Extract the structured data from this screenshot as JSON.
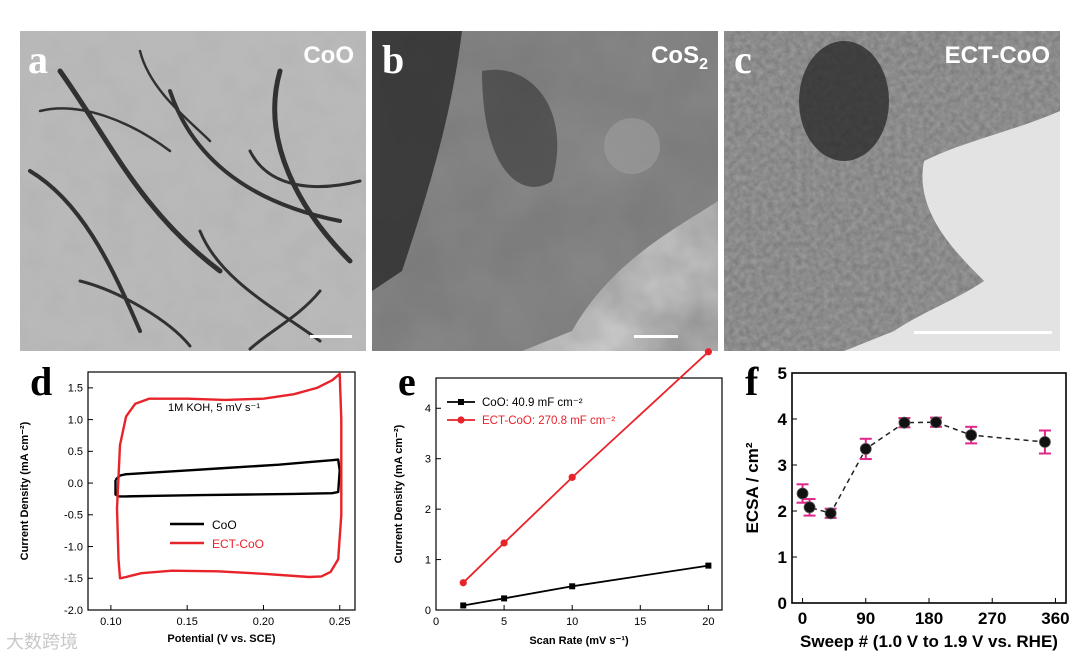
{
  "panels": {
    "a": {
      "label": "a",
      "title": "CoO"
    },
    "b": {
      "label": "b",
      "title_main": "CoS",
      "title_sub": "2"
    },
    "c": {
      "label": "c",
      "title": "ECT-CoO"
    }
  },
  "watermark": "大数跨境",
  "chart_data": [
    {
      "panel": "d",
      "type": "line",
      "annotation": "1M KOH, 5 mV s⁻¹",
      "xlabel": "Potential (V vs. SCE)",
      "ylabel": "Current Density (mA cm⁻²)",
      "xlim": [
        0.085,
        0.26
      ],
      "ylim": [
        -2.0,
        1.75
      ],
      "xticks": [
        0.1,
        0.15,
        0.2,
        0.25
      ],
      "yticks": [
        -2.0,
        -1.5,
        -1.0,
        -0.5,
        0.0,
        0.5,
        1.0,
        1.5
      ],
      "legend": "lower-left",
      "series": [
        {
          "name": "CoO",
          "color": "#000000",
          "x": [
            0.103,
            0.106,
            0.11,
            0.13,
            0.15,
            0.17,
            0.19,
            0.21,
            0.23,
            0.245,
            0.249,
            0.25,
            0.249,
            0.245,
            0.22,
            0.19,
            0.16,
            0.13,
            0.11,
            0.105,
            0.103,
            0.103
          ],
          "y": [
            0.05,
            0.12,
            0.14,
            0.17,
            0.2,
            0.23,
            0.26,
            0.29,
            0.33,
            0.36,
            0.37,
            0.2,
            -0.14,
            -0.16,
            -0.17,
            -0.18,
            -0.19,
            -0.2,
            -0.21,
            -0.21,
            -0.18,
            0.05
          ]
        },
        {
          "name": "ECT-CoO",
          "color": "#e8232a",
          "x": [
            0.104,
            0.106,
            0.11,
            0.116,
            0.125,
            0.15,
            0.175,
            0.2,
            0.22,
            0.235,
            0.245,
            0.25,
            0.251,
            0.251,
            0.249,
            0.244,
            0.238,
            0.23,
            0.2,
            0.17,
            0.14,
            0.12,
            0.11,
            0.106,
            0.105,
            0.104
          ],
          "y": [
            -0.4,
            0.6,
            1.05,
            1.25,
            1.33,
            1.33,
            1.31,
            1.33,
            1.4,
            1.5,
            1.62,
            1.72,
            1.0,
            -0.5,
            -1.2,
            -1.4,
            -1.47,
            -1.48,
            -1.43,
            -1.39,
            -1.38,
            -1.42,
            -1.48,
            -1.5,
            -1.2,
            -0.4
          ]
        }
      ]
    },
    {
      "panel": "e",
      "type": "line",
      "xlabel": "Scan Rate (mV s⁻¹)",
      "ylabel": "Current Density (mA cm⁻²)",
      "xlim": [
        0,
        21
      ],
      "ylim": [
        0,
        4.6
      ],
      "xticks": [
        0,
        5,
        10,
        15,
        20
      ],
      "yticks": [
        0,
        1,
        2,
        3,
        4
      ],
      "legend": "top-left",
      "series": [
        {
          "name": "CoO: 40.9 mF cm⁻²",
          "color": "#000000",
          "marker": "square",
          "x": [
            2,
            5,
            10,
            20
          ],
          "y": [
            0.09,
            0.23,
            0.47,
            0.88
          ]
        },
        {
          "name": "ECT-CoO: 270.8 mF cm⁻²",
          "color": "#e8232a",
          "marker": "circle",
          "x": [
            2,
            5,
            10,
            20
          ],
          "y": [
            0.54,
            1.33,
            2.63,
            5.12
          ]
        }
      ]
    },
    {
      "panel": "f",
      "type": "scatter",
      "xlabel": "Sweep # (1.0 V to 1.9 V vs. RHE)",
      "ylabel": "ECSA / cm²",
      "xlim": [
        -15,
        375
      ],
      "ylim": [
        0,
        5
      ],
      "xticks": [
        0,
        90,
        180,
        270,
        360
      ],
      "yticks": [
        0,
        1,
        2,
        3,
        4,
        5
      ],
      "series": [
        {
          "name": "",
          "color": "#111111",
          "errorcolor": "#e0278a",
          "x": [
            0,
            10,
            40,
            90,
            145,
            190,
            240,
            345
          ],
          "y": [
            2.38,
            2.08,
            1.95,
            3.35,
            3.92,
            3.93,
            3.65,
            3.5
          ],
          "err": [
            0.2,
            0.18,
            0.1,
            0.22,
            0.1,
            0.1,
            0.18,
            0.25
          ]
        }
      ]
    }
  ]
}
